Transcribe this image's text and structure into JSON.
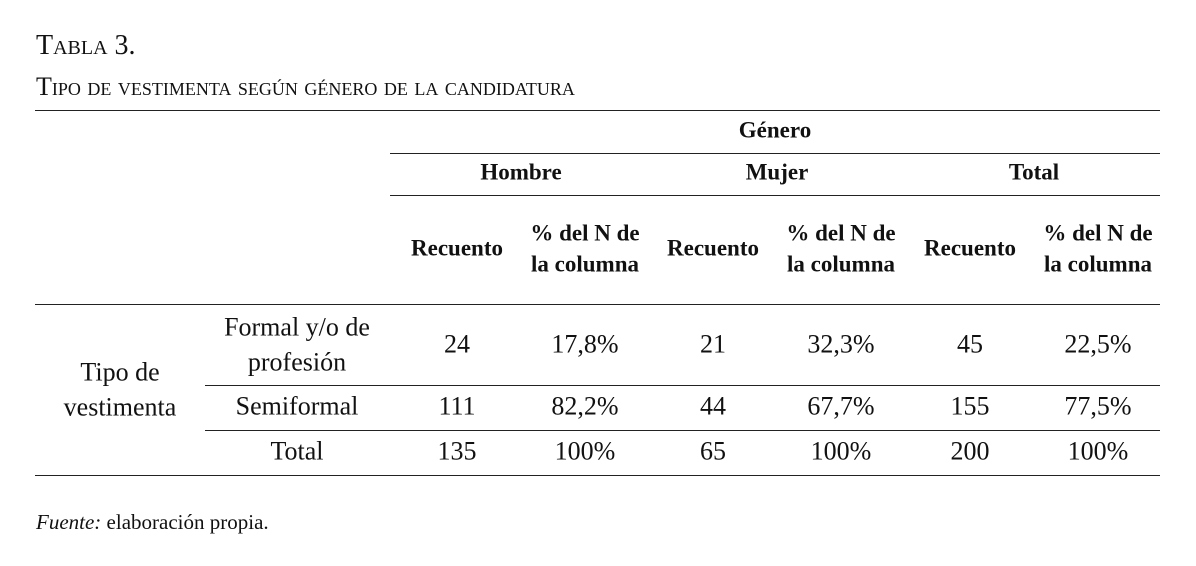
{
  "caption": {
    "label": "Tabla 3.",
    "title": "Tipo de vestimenta según género de la candidatura"
  },
  "table": {
    "group_header": "Género",
    "columns": [
      "Hombre",
      "Mujer",
      "Total"
    ],
    "subcolumns": [
      "Recuento",
      "% del N de la columna",
      "Recuento",
      "% del N de la columna",
      "Recuento",
      "% del N de la columna"
    ],
    "row_group": "Tipo de vestimenta",
    "rows": [
      {
        "label": "Formal y/o de profesión",
        "cells": [
          "24",
          "17,8%",
          "21",
          "32,3%",
          "45",
          "22,5%"
        ]
      },
      {
        "label": "Semiformal",
        "cells": [
          "111",
          "82,2%",
          "44",
          "67,7%",
          "155",
          "77,5%"
        ]
      },
      {
        "label": "Total",
        "cells": [
          "135",
          "100%",
          "65",
          "100%",
          "200",
          "100%"
        ]
      }
    ]
  },
  "footer": {
    "source_label": "Fuente:",
    "source": "elaboración propia."
  }
}
